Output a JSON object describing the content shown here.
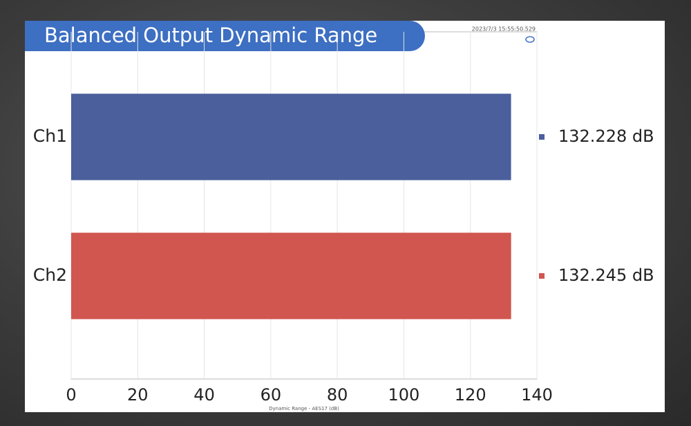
{
  "chart_data": {
    "type": "barh",
    "title": "Balanced Output Dynamic Range",
    "timestamp": "2023/7/3 15:55:50.529",
    "xlabel": "Dynamic Range - AES17 (dB)",
    "categories": [
      "Ch1",
      "Ch2"
    ],
    "values": [
      132.228,
      132.245
    ],
    "value_labels": [
      "132.228 dB",
      "132.245 dB"
    ],
    "colors": [
      "#4a5f9b",
      "#d0564f"
    ],
    "xlim": [
      0,
      140
    ],
    "xticks": [
      0,
      20,
      40,
      60,
      80,
      100,
      120,
      140
    ],
    "grid": true
  }
}
